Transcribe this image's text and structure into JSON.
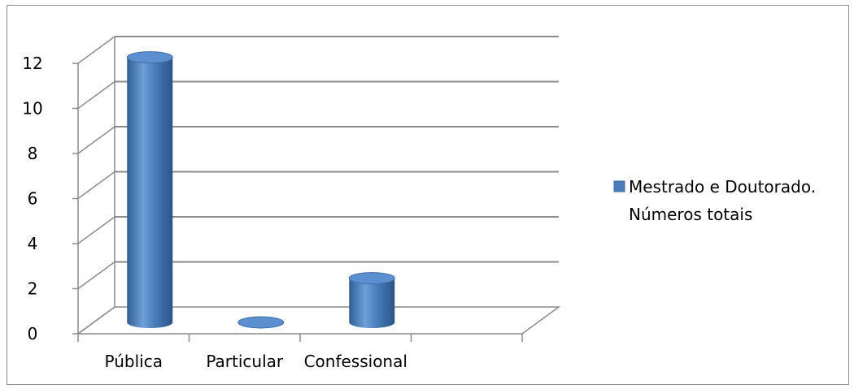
{
  "chart_data": {
    "type": "bar",
    "style": "3d-cylinder",
    "categories": [
      "Pública",
      "Particular",
      "Confessional"
    ],
    "series": [
      {
        "name": "Mestrado e Doutorado. Números totais",
        "name_lines": [
          "Mestrado e Doutorado.",
          "Números totais"
        ],
        "values": [
          12,
          0,
          2
        ],
        "color": "#4a7ebb"
      }
    ],
    "title": "",
    "xlabel": "",
    "ylabel": "",
    "ylim": [
      0,
      12
    ],
    "yticks": [
      0,
      2,
      4,
      6,
      8,
      10,
      12
    ],
    "grid": true,
    "legend": "right"
  }
}
